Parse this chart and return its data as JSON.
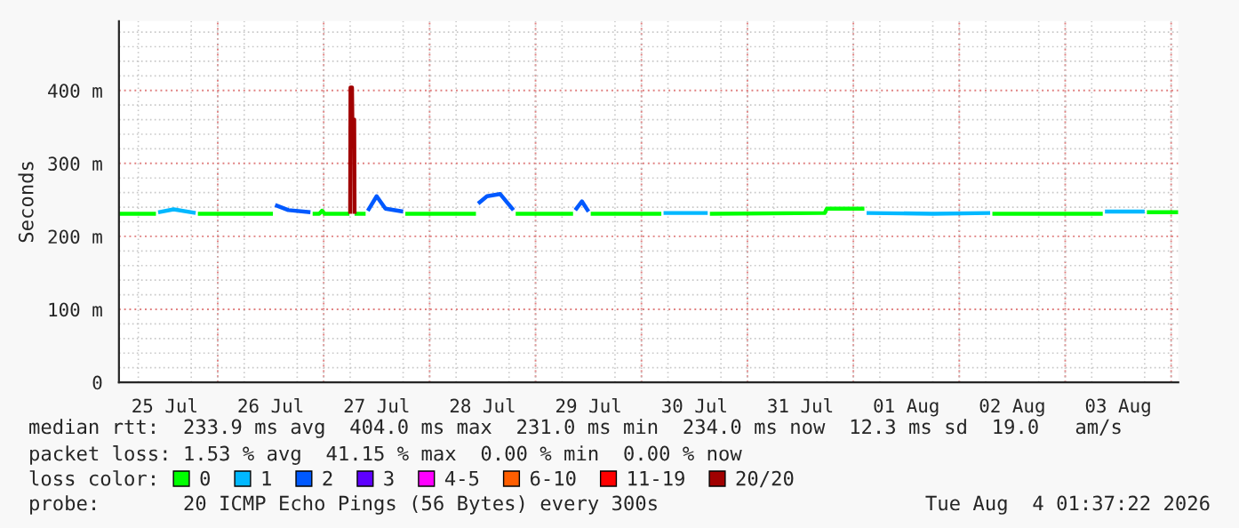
{
  "chart_data": {
    "type": "line",
    "ylabel": "Seconds",
    "legend_title": "loss color:",
    "xlim": [
      "2026-07-25T01:37",
      "2026-08-04T01:37"
    ],
    "xticks": [
      {
        "value": "2026-07-25T12:00",
        "label": "25 Jul"
      },
      {
        "value": "2026-07-26T12:00",
        "label": "26 Jul"
      },
      {
        "value": "2026-07-27T12:00",
        "label": "27 Jul"
      },
      {
        "value": "2026-07-28T12:00",
        "label": "28 Jul"
      },
      {
        "value": "2026-07-29T12:00",
        "label": "29 Jul"
      },
      {
        "value": "2026-07-30T12:00",
        "label": "30 Jul"
      },
      {
        "value": "2026-07-31T12:00",
        "label": "31 Jul"
      },
      {
        "value": "2026-08-01T12:00",
        "label": "01 Aug"
      },
      {
        "value": "2026-08-02T12:00",
        "label": "02 Aug"
      },
      {
        "value": "2026-08-03T12:00",
        "label": "03 Aug"
      }
    ],
    "ylim": [
      0,
      495
    ],
    "yticks": [
      0,
      {
        "value": 100,
        "label": "100 m"
      },
      {
        "value": 200,
        "label": "200 m"
      },
      {
        "value": 300,
        "label": "300 m"
      },
      {
        "value": 400,
        "label": "400 m"
      }
    ],
    "grid": true,
    "legend": "bottom",
    "marker": "none",
    "line_style": "solid",
    "series": [
      {
        "name": "0",
        "color": "#00ff00",
        "x": [
          "2026-07-25T01:37",
          "2026-07-25T10:00",
          "2026-07-25T10:30",
          "2026-07-25T19:30",
          "2026-07-26T12:30",
          "2026-07-26T13:00",
          "2026-07-26T21:30",
          "2026-07-26T23:00",
          "2026-07-26T23:36",
          "2026-07-27T00:15",
          "2026-07-27T05:50",
          "2026-07-27T06:00",
          "2026-07-27T07:00",
          "2026-07-27T09:30",
          "2026-07-27T10:00",
          "2026-07-27T18:30",
          "2026-07-28T10:30",
          "2026-07-28T11:00",
          "2026-07-28T19:30",
          "2026-07-29T08:30",
          "2026-07-29T09:00",
          "2026-07-29T12:30",
          "2026-07-30T04:30",
          "2026-07-30T05:00",
          "2026-07-30T15:30",
          "2026-07-31T17:30",
          "2026-07-31T18:00",
          "2026-08-01T02:30",
          "2026-08-01T03:00",
          "2026-08-02T07:30",
          "2026-08-03T08:30",
          "2026-08-03T09:00",
          "2026-08-03T18:30",
          "2026-08-04T01:37"
        ],
        "values": [
          231,
          231,
          null,
          231,
          231,
          null,
          231,
          231,
          235,
          231,
          231,
          null,
          231,
          231,
          null,
          231,
          231,
          null,
          231,
          231,
          null,
          231,
          231,
          null,
          231,
          232,
          238,
          238,
          null,
          231,
          231,
          null,
          233,
          233
        ]
      },
      {
        "name": "1",
        "color": "#00b8ff",
        "x": [
          "2026-07-25T10:30",
          "2026-07-25T14:00",
          "2026-07-25T19:00",
          "2026-07-25T19:15",
          "2026-07-30T05:00",
          "2026-07-30T15:00",
          "2026-07-30T15:15",
          "2026-08-01T03:00",
          "2026-08-01T18:00",
          "2026-08-02T07:00",
          "2026-08-02T07:15",
          "2026-08-03T09:00",
          "2026-08-03T18:00"
        ],
        "values": [
          233,
          237,
          232,
          null,
          232,
          232,
          null,
          232,
          231,
          232,
          null,
          234,
          234
        ]
      },
      {
        "name": "2",
        "color": "#0059ff",
        "x": [
          "2026-07-26T13:00",
          "2026-07-26T16:00",
          "2026-07-26T21:00",
          "2026-07-26T21:15",
          "2026-07-27T10:00",
          "2026-07-27T12:00",
          "2026-07-27T14:00",
          "2026-07-27T18:00",
          "2026-07-27T18:15",
          "2026-07-28T11:00",
          "2026-07-28T13:00",
          "2026-07-28T16:00",
          "2026-07-28T19:00",
          "2026-07-28T19:15",
          "2026-07-29T09:00",
          "2026-07-29T10:30",
          "2026-07-29T12:00"
        ],
        "values": [
          243,
          236,
          233,
          null,
          235,
          255,
          238,
          234,
          null,
          245,
          255,
          258,
          236,
          null,
          236,
          248,
          234
        ]
      },
      {
        "name": "3",
        "color": "#5e00ff"
      },
      {
        "name": "4-5",
        "color": "#ff00ff"
      },
      {
        "name": "6-10",
        "color": "#ff5e00"
      },
      {
        "name": "11-19",
        "color": "#ff0000"
      },
      {
        "name": "20/20",
        "color": "#a10000",
        "x": [
          "2026-07-27T06:00",
          "2026-07-27T06:05",
          "2026-07-27T06:25",
          "2026-07-27T06:30",
          "2026-07-27T06:55",
          "2026-07-27T07:00"
        ],
        "values": [
          231,
          404,
          404,
          360,
          360,
          231
        ]
      }
    ],
    "annotations": [
      "median rtt:  233.9 ms avg  404.0 ms max  231.0 ms min  234.0 ms now  12.3 ms sd  19.0   am/s",
      "packet loss: 1.53 % avg  41.15 % max  0.00 % min  0.00 % now",
      "probe:       20 ICMP Echo Pings (56 Bytes) every 300s",
      "Tue Aug  4 01:37:22 2026"
    ]
  }
}
